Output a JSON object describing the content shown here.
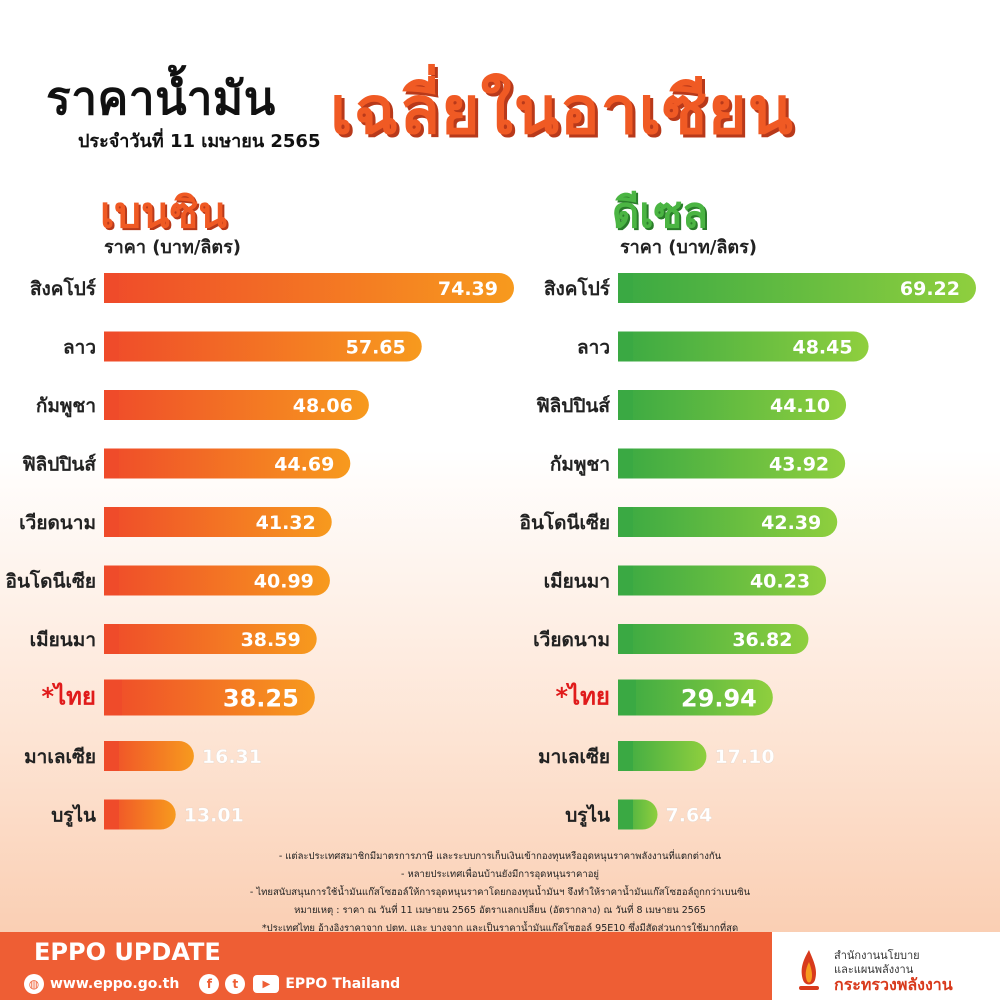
{
  "header": {
    "title_main": "ราคาน้ำมัน",
    "title_highlight": "เฉลี่ยในอาเซียน",
    "date_line": "ประจำวันที่ 11 เมษายน 2565"
  },
  "chart_data": [
    {
      "type": "bar",
      "title": "เบนซิน",
      "ylabel": "ราคา (บาท/ลิตร)",
      "categories": [
        "สิงคโปร์",
        "ลาว",
        "กัมพูชา",
        "ฟิลิปปินส์",
        "เวียดนาม",
        "อินโดนีเซีย",
        "เมียนมา",
        "*ไทย",
        "มาเลเซีย",
        "บรูไน"
      ],
      "values": [
        74.39,
        57.65,
        48.06,
        44.69,
        41.32,
        40.99,
        38.59,
        38.25,
        16.31,
        13.01
      ],
      "highlight": "*ไทย",
      "color_from": "#ef4b2a",
      "color_to": "#f79a1e"
    },
    {
      "type": "bar",
      "title": "ดีเซล",
      "ylabel": "ราคา (บาท/ลิตร)",
      "categories": [
        "สิงคโปร์",
        "ลาว",
        "ฟิลิปปินส์",
        "กัมพูชา",
        "อินโดนีเซีย",
        "เมียนมา",
        "เวียดนาม",
        "*ไทย",
        "มาเลเซีย",
        "บรูไน"
      ],
      "values": [
        69.22,
        48.45,
        44.1,
        43.92,
        42.39,
        40.23,
        36.82,
        29.94,
        17.1,
        7.64
      ],
      "highlight": "*ไทย",
      "color_from": "#3aa943",
      "color_to": "#8fcf3e"
    }
  ],
  "notes": [
    "- แต่ละประเทศสมาชิกมีมาตรการภาษี และระบบการเก็บเงินเข้ากองทุนหรืออุดหนุนราคาพลังงานที่แตกต่างกัน",
    "- หลายประเทศเพื่อนบ้านยังมีการอุดหนุนราคาอยู่",
    "- ไทยสนับสนุนการใช้น้ำมันแก๊สโซฮอล์ให้การอุดหนุนราคาโดยกองทุนน้ำมันฯ จึงทำให้ราคาน้ำมันแก๊สโซฮอล์ถูกกว่าเบนซิน",
    "หมายเหตุ : ราคา ณ วันที่ 11 เมษายน 2565 อัตราแลกเปลี่ยน (อัตรากลาง) ณ วันที่ 8 เมษายน 2565",
    "*ประเทศไทย อ้างอิงราคาจาก ปตท. และ บางจาก และเป็นราคาน้ำมันแก๊สโซฮอล์ 95E10 ซึ่งมีสัดส่วนการใช้มากที่สุด"
  ],
  "footer": {
    "eppo_update": "EPPO UPDATE",
    "website": "www.eppo.go.th",
    "social_name": "EPPO Thailand",
    "org_line1": "สำนักงานนโยบาย",
    "org_line2": "และแผนพลังงาน",
    "ministry": "กระทรวงพลังงาน",
    "brand_color": "#ee5e34"
  }
}
